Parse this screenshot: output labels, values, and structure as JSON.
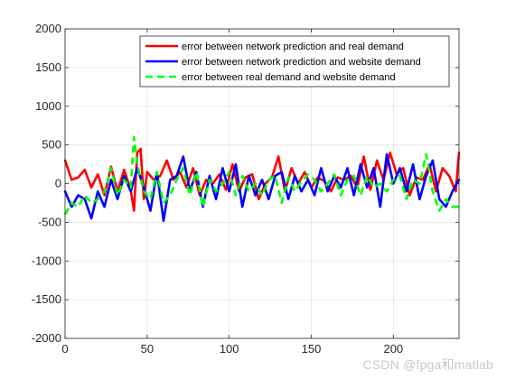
{
  "chart_data": {
    "type": "line",
    "title": "",
    "xlabel": "",
    "ylabel": "",
    "xlim": [
      0,
      240
    ],
    "ylim": [
      -2000,
      2000
    ],
    "xticks": [
      0,
      50,
      100,
      150,
      200
    ],
    "yticks": [
      -2000,
      -1500,
      -1000,
      -500,
      0,
      500,
      1000,
      1500,
      2000
    ],
    "grid": true,
    "legend_placement": "top-right",
    "series": [
      {
        "name": "error between network prediction and real demand",
        "color": "#ff0000",
        "style": "solid",
        "x": [
          0,
          4,
          8,
          12,
          16,
          20,
          24,
          28,
          32,
          36,
          40,
          42,
          44,
          46,
          48,
          50,
          54,
          58,
          62,
          66,
          70,
          74,
          78,
          82,
          86,
          90,
          94,
          98,
          102,
          106,
          110,
          114,
          118,
          122,
          126,
          130,
          134,
          138,
          142,
          146,
          150,
          154,
          158,
          162,
          166,
          170,
          174,
          178,
          182,
          186,
          190,
          194,
          198,
          202,
          206,
          210,
          214,
          218,
          222,
          226,
          230,
          234,
          238,
          240
        ],
        "y": [
          300,
          50,
          80,
          180,
          -50,
          120,
          -150,
          220,
          -100,
          180,
          -80,
          -350,
          400,
          450,
          -200,
          150,
          50,
          100,
          300,
          50,
          150,
          -50,
          200,
          -150,
          50,
          0,
          120,
          -80,
          250,
          -100,
          80,
          120,
          -200,
          0,
          80,
          350,
          -100,
          200,
          0,
          150,
          -50,
          80,
          30,
          -100,
          80,
          50,
          100,
          -50,
          350,
          -80,
          300,
          50,
          400,
          120,
          200,
          -150,
          80,
          50,
          250,
          -100,
          200,
          100,
          -100,
          400
        ]
      },
      {
        "name": "error between network prediction and website demand",
        "color": "#0000ff",
        "style": "solid",
        "x": [
          0,
          4,
          8,
          12,
          16,
          20,
          24,
          28,
          32,
          36,
          40,
          44,
          48,
          52,
          56,
          60,
          64,
          68,
          72,
          76,
          80,
          84,
          88,
          92,
          96,
          100,
          104,
          108,
          112,
          116,
          120,
          124,
          128,
          132,
          136,
          140,
          144,
          148,
          152,
          156,
          160,
          164,
          168,
          172,
          176,
          180,
          184,
          188,
          192,
          196,
          200,
          204,
          208,
          212,
          216,
          220,
          224,
          228,
          232,
          236,
          240
        ],
        "y": [
          -100,
          -300,
          -150,
          -200,
          -450,
          -100,
          -300,
          50,
          -200,
          100,
          -100,
          200,
          -50,
          -350,
          150,
          -480,
          50,
          100,
          350,
          -100,
          150,
          -300,
          100,
          -200,
          200,
          -100,
          250,
          -300,
          100,
          -150,
          50,
          -200,
          100,
          150,
          -200,
          100,
          -100,
          50,
          -150,
          200,
          -100,
          100,
          -50,
          200,
          -150,
          250,
          -50,
          200,
          -300,
          380,
          0,
          200,
          -100,
          250,
          -200,
          100,
          300,
          -200,
          -300,
          -100,
          50
        ]
      },
      {
        "name": "error between real demand and website demand",
        "color": "#00ff00",
        "style": "dashed",
        "x": [
          0,
          4,
          8,
          12,
          16,
          20,
          24,
          28,
          32,
          36,
          40,
          42,
          44,
          48,
          52,
          56,
          60,
          64,
          68,
          72,
          76,
          80,
          84,
          88,
          92,
          96,
          100,
          104,
          108,
          112,
          116,
          120,
          124,
          128,
          132,
          136,
          140,
          144,
          148,
          152,
          156,
          160,
          164,
          168,
          172,
          176,
          180,
          184,
          188,
          192,
          196,
          200,
          204,
          208,
          212,
          216,
          220,
          224,
          228,
          232,
          236,
          240
        ],
        "y": [
          -400,
          -250,
          -300,
          -150,
          -250,
          -200,
          -100,
          200,
          -150,
          50,
          -50,
          600,
          250,
          -100,
          -200,
          150,
          -250,
          -150,
          50,
          200,
          -150,
          150,
          -300,
          50,
          -100,
          0,
          150,
          -150,
          100,
          -100,
          0,
          -150,
          50,
          100,
          -250,
          80,
          -100,
          30,
          120,
          50,
          -100,
          0,
          120,
          -150,
          50,
          100,
          -150,
          100,
          -50,
          0,
          -100,
          50,
          100,
          -200,
          50,
          0,
          380,
          -100,
          -350,
          -200,
          -300,
          -300
        ]
      }
    ]
  },
  "watermark": "CSDN @fpga和matlab"
}
